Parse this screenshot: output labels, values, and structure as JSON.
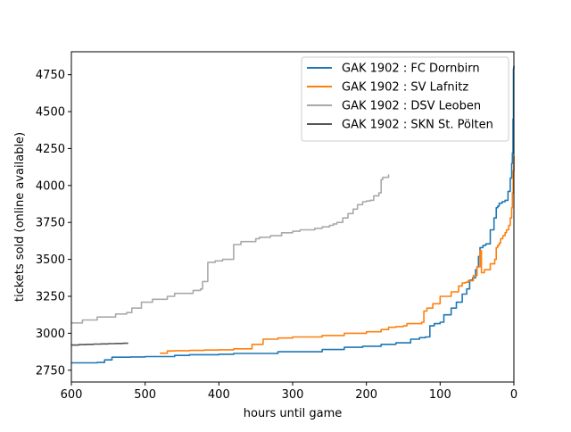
{
  "chart_data": {
    "type": "line",
    "title": "",
    "xlabel": "hours until game",
    "ylabel": "tickets sold (online available)",
    "xlim": [
      600,
      0
    ],
    "ylim": [
      2670,
      4905
    ],
    "x_ticks": [
      600,
      500,
      400,
      300,
      200,
      100,
      0
    ],
    "y_ticks": [
      2750,
      3000,
      3250,
      3500,
      3750,
      4000,
      4250,
      4500,
      4750
    ],
    "grid": false,
    "legend_position": "top-right",
    "series": [
      {
        "name": "GAK 1902 : FC Dornbirn",
        "color": "#1f77b4",
        "x": [
          600,
          565,
          555,
          545,
          520,
          500,
          460,
          440,
          400,
          380,
          320,
          260,
          230,
          205,
          180,
          160,
          140,
          128,
          120,
          114,
          108,
          100,
          95,
          85,
          78,
          70,
          64,
          60,
          56,
          52,
          50,
          48,
          46,
          42,
          38,
          32,
          30,
          27,
          24,
          22,
          20,
          18,
          16,
          12,
          8,
          5,
          3,
          2,
          1.2,
          0.6,
          0
        ],
        "y": [
          2800,
          2802,
          2820,
          2838,
          2840,
          2842,
          2850,
          2855,
          2858,
          2863,
          2875,
          2890,
          2905,
          2912,
          2925,
          2935,
          2960,
          2970,
          2975,
          3050,
          3065,
          3075,
          3125,
          3170,
          3210,
          3265,
          3300,
          3360,
          3375,
          3430,
          3450,
          3520,
          3580,
          3595,
          3605,
          3700,
          3700,
          3780,
          3850,
          3860,
          3880,
          3880,
          3890,
          3900,
          3960,
          4050,
          4150,
          4220,
          4450,
          4790,
          4810
        ]
      },
      {
        "name": "GAK 1902 : SV Lafnitz",
        "color": "#ff7f0e",
        "x": [
          480,
          470,
          460,
          440,
          420,
          400,
          380,
          355,
          340,
          320,
          300,
          260,
          230,
          200,
          180,
          170,
          160,
          150,
          145,
          125,
          122,
          118,
          110,
          100,
          85,
          75,
          70,
          66,
          62,
          55,
          50,
          46,
          44,
          40,
          32,
          26,
          24,
          22,
          20,
          18,
          15,
          12,
          10,
          7,
          5,
          3,
          2,
          1,
          0
        ],
        "y": [
          2865,
          2880,
          2882,
          2884,
          2886,
          2888,
          2895,
          2925,
          2960,
          2968,
          2975,
          2985,
          3000,
          3010,
          3025,
          3040,
          3045,
          3050,
          3065,
          3075,
          3150,
          3170,
          3200,
          3250,
          3280,
          3320,
          3340,
          3345,
          3355,
          3390,
          3450,
          3560,
          3410,
          3430,
          3470,
          3500,
          3580,
          3595,
          3610,
          3640,
          3660,
          3680,
          3700,
          3730,
          3780,
          3850,
          3950,
          4100,
          4200
        ]
      },
      {
        "name": "GAK 1902 : DSV Leoben",
        "color": "#a9a9a9",
        "x": [
          600,
          585,
          565,
          540,
          525,
          518,
          505,
          490,
          470,
          460,
          435,
          425,
          422,
          415,
          405,
          395,
          380,
          370,
          350,
          345,
          330,
          315,
          300,
          290,
          270,
          260,
          250,
          245,
          240,
          232,
          225,
          218,
          212,
          205,
          200,
          195,
          190,
          183,
          180,
          178,
          170
        ],
        "y": [
          3070,
          3090,
          3110,
          3130,
          3140,
          3170,
          3210,
          3230,
          3250,
          3270,
          3290,
          3300,
          3350,
          3480,
          3490,
          3500,
          3600,
          3620,
          3640,
          3650,
          3660,
          3680,
          3690,
          3700,
          3710,
          3720,
          3730,
          3740,
          3750,
          3780,
          3810,
          3840,
          3870,
          3890,
          3895,
          3900,
          3930,
          3950,
          4040,
          4055,
          4075
        ]
      },
      {
        "name": "GAK 1902 : SKN St. Pölten",
        "color": "#555555",
        "x": [
          600,
          590,
          580,
          570,
          560,
          550,
          540,
          530,
          523
        ],
        "y": [
          2920,
          2923,
          2925,
          2927,
          2928,
          2930,
          2931,
          2932,
          2932
        ]
      }
    ]
  }
}
